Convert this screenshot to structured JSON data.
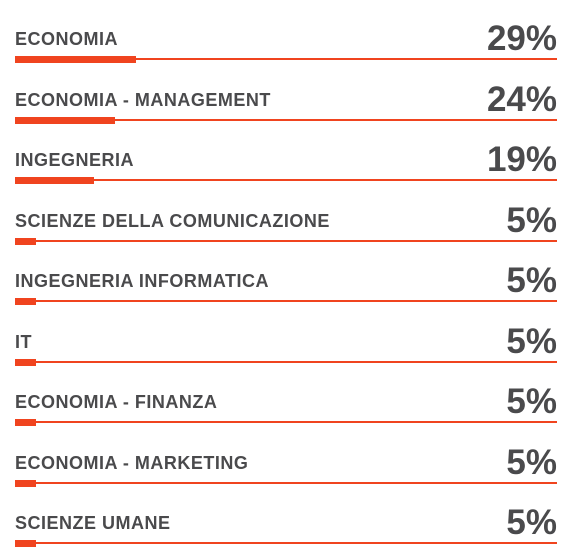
{
  "accent_color": "#f0441f",
  "text_color": "#4a4a4c",
  "chart_data": {
    "type": "bar",
    "orientation": "horizontal",
    "categories": [
      "ECONOMIA",
      "ECONOMIA - MANAGEMENT",
      "INGEGNERIA",
      "SCIENZE DELLA COMUNICAZIONE",
      "INGEGNERIA INFORMATICA",
      "IT",
      "ECONOMIA - FINANZA",
      "ECONOMIA - MARKETING",
      "SCIENZE UMANE"
    ],
    "values": [
      29,
      24,
      19,
      5,
      5,
      5,
      5,
      5,
      5
    ],
    "value_labels": [
      "29%",
      "24%",
      "19%",
      "5%",
      "5%",
      "5%",
      "5%",
      "5%",
      "5%"
    ],
    "unit": "%",
    "title": "",
    "xlabel": "",
    "ylabel": "",
    "xlim": [
      0,
      130
    ],
    "grid": false,
    "legend": "none"
  }
}
